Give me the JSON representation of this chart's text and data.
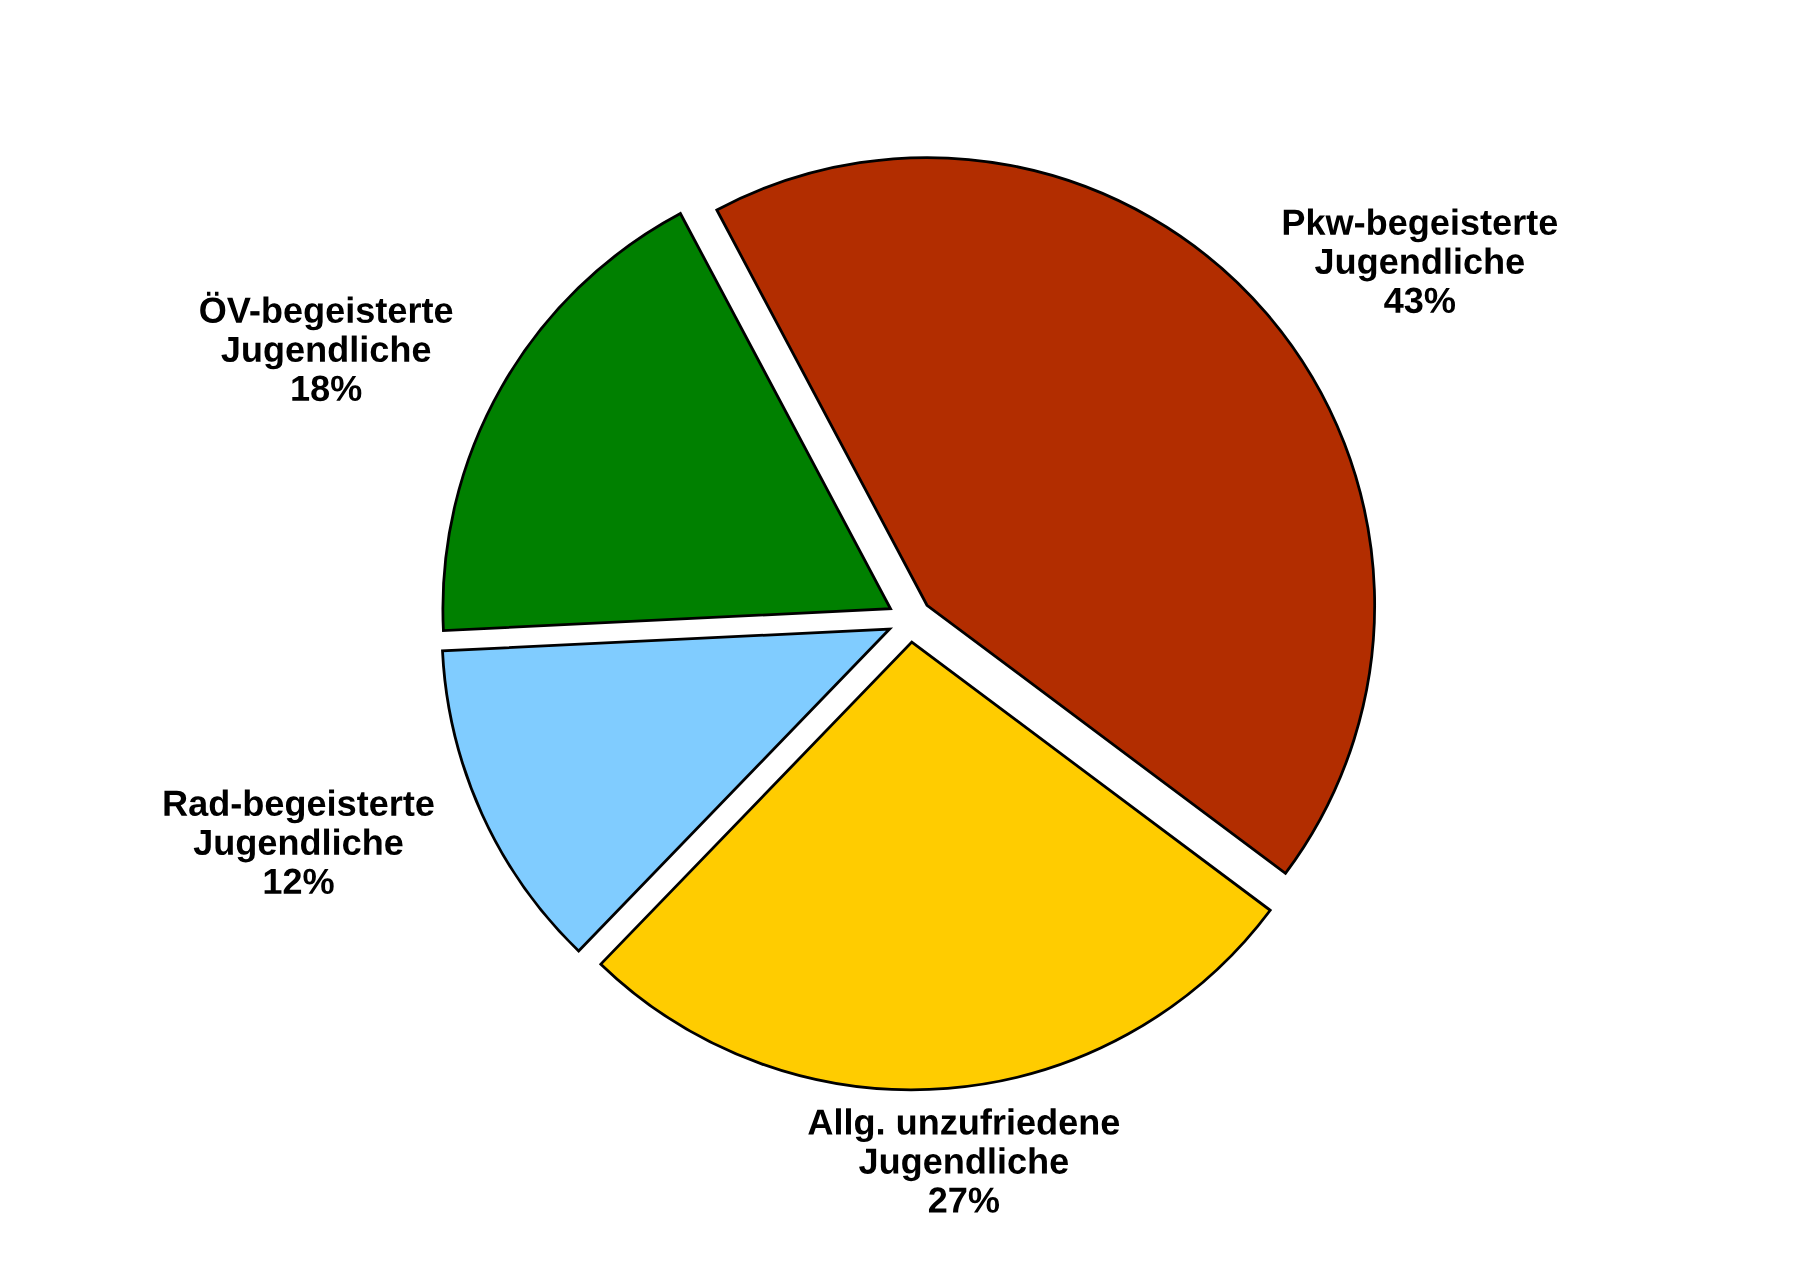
{
  "chart_data": {
    "type": "pie",
    "categories": [
      "Pkw-begeisterte Jugendliche",
      "Allg. unzufriedene Jugendliche",
      "Rad-begeisterte Jugendliche",
      "ÖV-begeisterte Jugendliche"
    ],
    "values": [
      43,
      27,
      12,
      18
    ],
    "value_labels": [
      "43%",
      "27%",
      "12%",
      "18%"
    ],
    "colors": [
      "#b22d00",
      "#ffcc00",
      "#80ccff",
      "#008000"
    ],
    "legend": false
  }
}
